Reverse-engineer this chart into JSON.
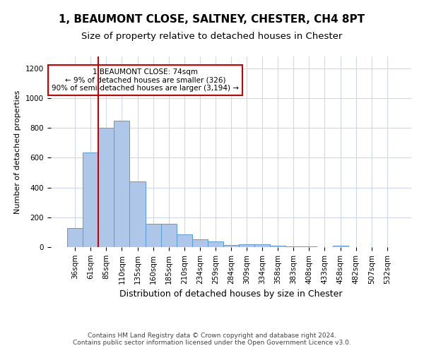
{
  "title": "1, BEAUMONT CLOSE, SALTNEY, CHESTER, CH4 8PT",
  "subtitle": "Size of property relative to detached houses in Chester",
  "xlabel": "Distribution of detached houses by size in Chester",
  "ylabel": "Number of detached properties",
  "categories": [
    "36sqm",
    "61sqm",
    "85sqm",
    "110sqm",
    "135sqm",
    "160sqm",
    "185sqm",
    "210sqm",
    "234sqm",
    "259sqm",
    "284sqm",
    "309sqm",
    "334sqm",
    "358sqm",
    "383sqm",
    "408sqm",
    "433sqm",
    "458sqm",
    "482sqm",
    "507sqm",
    "532sqm"
  ],
  "values": [
    130,
    635,
    800,
    850,
    440,
    155,
    155,
    85,
    50,
    38,
    15,
    20,
    18,
    8,
    5,
    3,
    2,
    8,
    2,
    1,
    0
  ],
  "bar_color": "#aec6e8",
  "bar_edge_color": "#5a9bd5",
  "vline_x_index": 1.5,
  "vline_color": "#cc0000",
  "annotation_text": "1 BEAUMONT CLOSE: 74sqm\n← 9% of detached houses are smaller (326)\n90% of semi-detached houses are larger (3,194) →",
  "annotation_box_color": "#ffffff",
  "annotation_box_edge": "#cc0000",
  "ylim": [
    0,
    1280
  ],
  "yticks": [
    0,
    200,
    400,
    600,
    800,
    1000,
    1200
  ],
  "footer": "Contains HM Land Registry data © Crown copyright and database right 2024.\nContains public sector information licensed under the Open Government Licence v3.0.",
  "bg_color": "#ffffff",
  "grid_color": "#d0d8e8",
  "title_fontsize": 11,
  "subtitle_fontsize": 9.5,
  "xlabel_fontsize": 9,
  "ylabel_fontsize": 8,
  "tick_fontsize": 7.5,
  "footer_fontsize": 6.5,
  "annotation_fontsize": 7.5
}
